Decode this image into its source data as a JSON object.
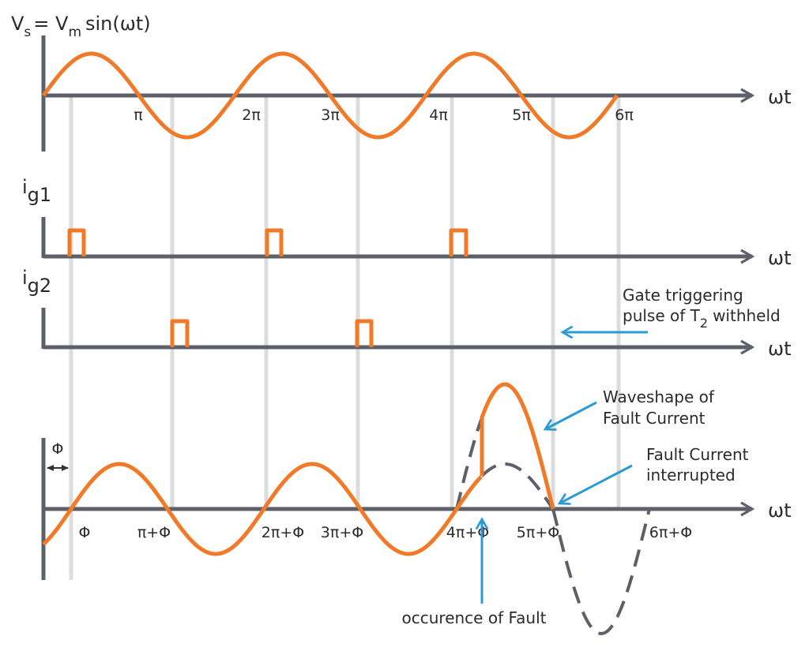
{
  "vs_label": [
    "V",
    "s",
    "= V",
    "m",
    "sin(ωt)"
  ],
  "ig1_label": [
    "i",
    "g1"
  ],
  "ig2_label": [
    "i",
    "g2"
  ],
  "axis_labels": [
    "ωt",
    "ωt",
    "ωt",
    "ωt"
  ],
  "top_ticks": [
    "π",
    "2π",
    "3π",
    "4π",
    "5π",
    "6π"
  ],
  "bottom_ticks": [
    "Φ",
    "π+Φ",
    "2π+Φ",
    "3π+Φ",
    "4π+Φ",
    "5π+Φ",
    "6π+Φ"
  ],
  "phi_marker": "Φ",
  "annotations": {
    "gate": [
      "Gate triggering",
      "pulse of T",
      "2",
      "withheld"
    ],
    "waveshape": [
      "Waveshape of",
      "Fault Current"
    ],
    "interrupted": [
      "Fault Current",
      "interrupted"
    ],
    "fault": "occurence of Fault"
  }
}
